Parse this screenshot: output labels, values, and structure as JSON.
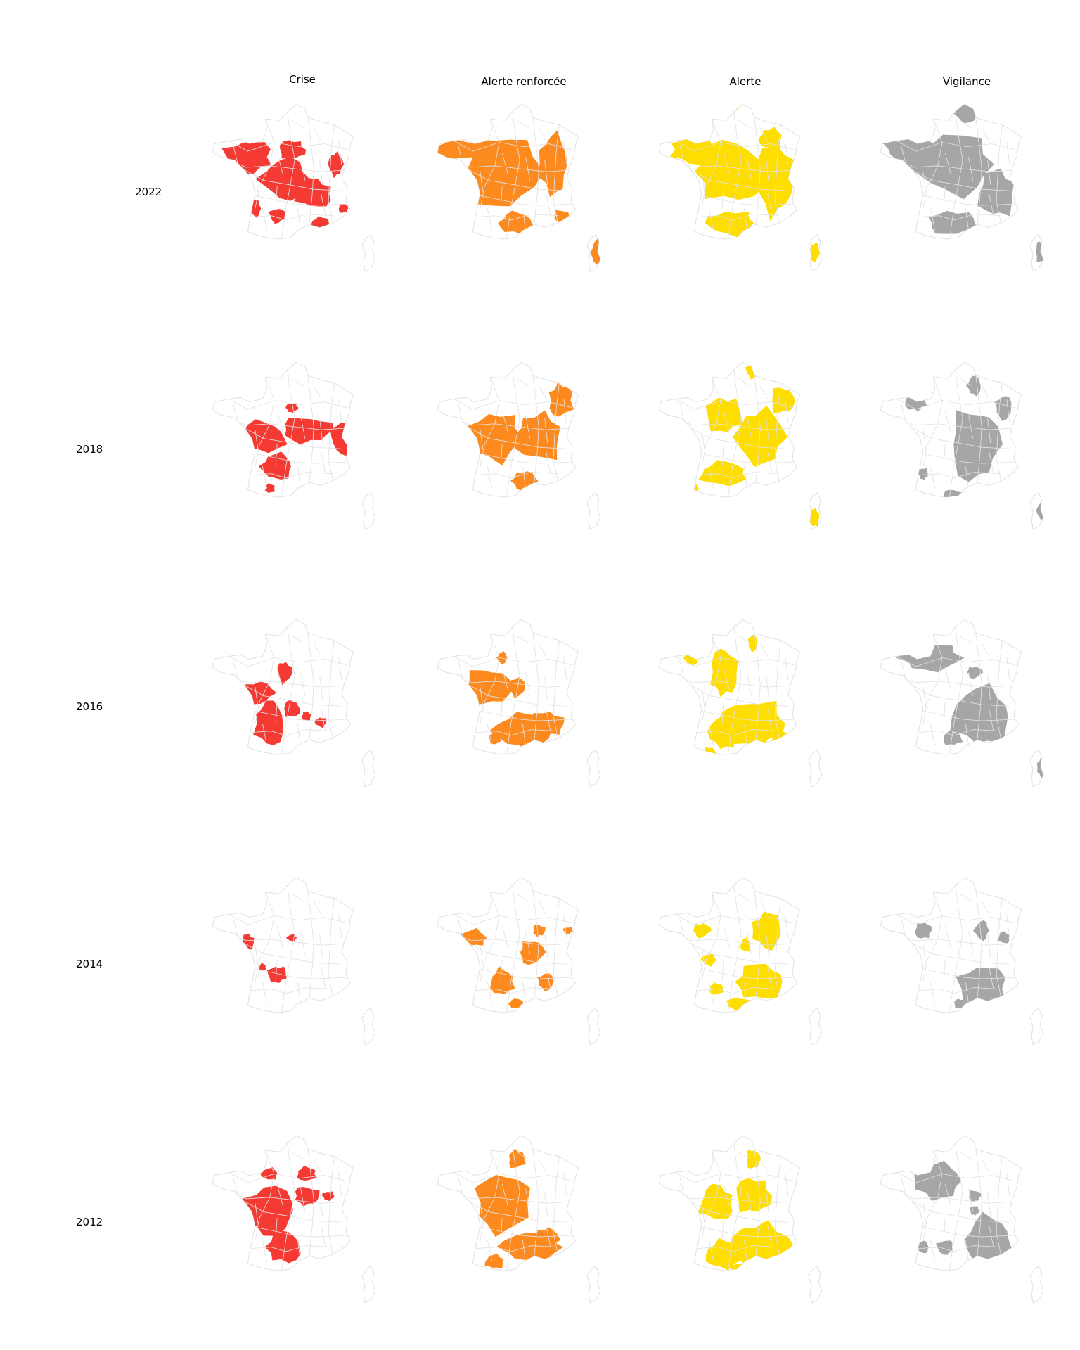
{
  "columns": [
    {
      "label": "Crise",
      "color": "#f53a33"
    },
    {
      "label": "Alerte renforcée",
      "color": "#fd8a1e"
    },
    {
      "label": "Alerte",
      "color": "#fedd00"
    },
    {
      "label": "Vigilance",
      "color": "#a6a6a6"
    }
  ],
  "rows": [
    {
      "label": "2022"
    },
    {
      "label": "2018"
    },
    {
      "label": "2016"
    },
    {
      "label": "2014"
    },
    {
      "label": "2012"
    }
  ],
  "map": {
    "outline_color": "#e2e2e2",
    "region": "France"
  }
}
